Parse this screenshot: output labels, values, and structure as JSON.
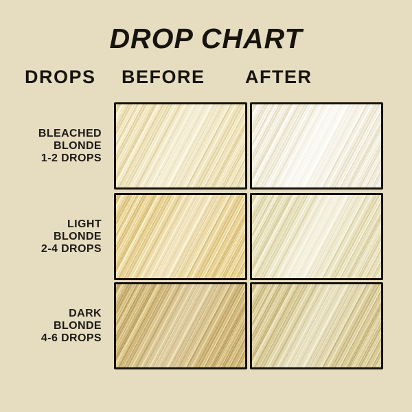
{
  "page": {
    "title": "DROP CHART",
    "background_color": "#e6ddc1",
    "text_color": "#1d1915",
    "border_color": "#16120d"
  },
  "columns": {
    "drops": "DROPS",
    "before": "BEFORE",
    "after": "AFTER"
  },
  "rows": [
    {
      "label_lines": [
        "BLEACHED",
        "BLONDE",
        "1-2 DROPS"
      ],
      "before": {
        "base": "#eee3bc",
        "hi": "#faf4da",
        "lo": "#d9c795",
        "sheen": "rgba(255,255,255,0.35)"
      },
      "after": {
        "base": "#f1eddc",
        "hi": "#fdfcf6",
        "lo": "#ded6ba",
        "sheen": "rgba(255,255,255,0.6)"
      }
    },
    {
      "label_lines": [
        "LIGHT",
        "BLONDE",
        "2-4 DROPS"
      ],
      "before": {
        "base": "#e8d295",
        "hi": "#f8eec6",
        "lo": "#cfb474",
        "sheen": "rgba(255,255,255,0.35)"
      },
      "after": {
        "base": "#e7e0bc",
        "hi": "#f7f3de",
        "lo": "#d1c593",
        "sheen": "rgba(255,255,255,0.5)"
      }
    },
    {
      "label_lines": [
        "DARK",
        "BLONDE",
        "4-6 DROPS"
      ],
      "before": {
        "base": "#d1b87c",
        "hi": "#e9daa5",
        "lo": "#b1975a",
        "sheen": "rgba(255,255,255,0.28)"
      },
      "after": {
        "base": "#d9cc98",
        "hi": "#eee6c2",
        "lo": "#baa873",
        "sheen": "rgba(255,255,255,0.38)"
      }
    }
  ]
}
